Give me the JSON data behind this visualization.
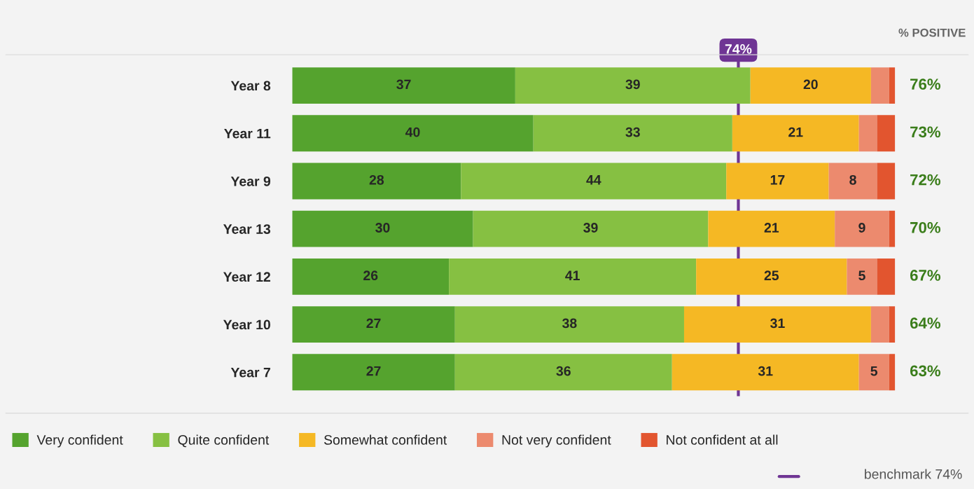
{
  "chart_data": {
    "type": "bar",
    "orientation": "horizontal",
    "stacked": true,
    "categories": [
      "Year 8",
      "Year 11",
      "Year 9",
      "Year 13",
      "Year 12",
      "Year 10",
      "Year 7"
    ],
    "series": [
      {
        "name": "Very confident",
        "color": "#55a32e",
        "values": [
          37,
          40,
          28,
          30,
          26,
          27,
          27
        ],
        "value_labels": [
          "37",
          "40",
          "28",
          "30",
          "26",
          "27",
          "27"
        ]
      },
      {
        "name": "Quite confident",
        "color": "#86c042",
        "values": [
          39,
          33,
          44,
          39,
          41,
          38,
          36
        ],
        "value_labels": [
          "39",
          "33",
          "44",
          "39",
          "41",
          "38",
          "36"
        ]
      },
      {
        "name": "Somewhat confident",
        "color": "#f5b824",
        "values": [
          20,
          21,
          17,
          21,
          25,
          31,
          31
        ],
        "value_labels": [
          "20",
          "21",
          "17",
          "21",
          "25",
          "31",
          "31"
        ]
      },
      {
        "name": "Not very confident",
        "color": "#ec8a6e",
        "values": [
          3,
          3,
          8,
          9,
          5,
          3,
          5
        ],
        "value_labels": [
          null,
          null,
          "8",
          "9",
          "5",
          null,
          "5"
        ]
      },
      {
        "name": "Not confident at all",
        "color": "#e2552f",
        "values": [
          1,
          3,
          3,
          1,
          3,
          1,
          1
        ],
        "value_labels": [
          null,
          null,
          null,
          null,
          null,
          null,
          null
        ]
      }
    ],
    "xlim": [
      0,
      100
    ],
    "tick_labels": "y",
    "grid": false,
    "legend": "bottom",
    "ref_lines": [
      {
        "axis": "x",
        "value": 74,
        "label": "74%",
        "color": "#6f3594"
      }
    ],
    "annotations": [
      "% POSITIVE",
      "benchmark 74%",
      "76%",
      "73%",
      "72%",
      "70%",
      "67%",
      "64%",
      "63%"
    ]
  }
}
